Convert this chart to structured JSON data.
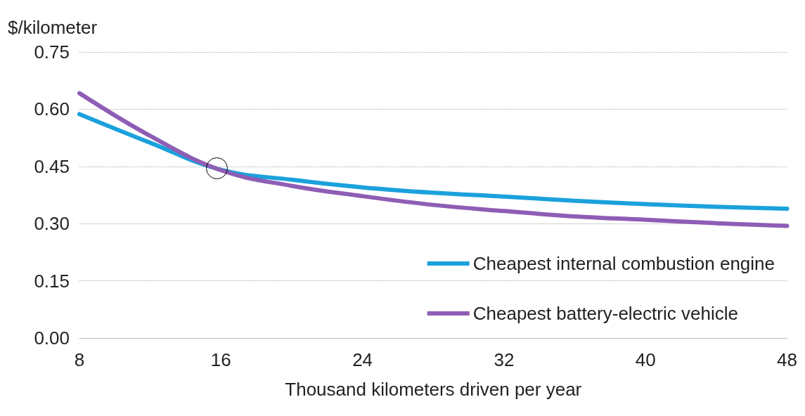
{
  "chart_data": {
    "type": "line",
    "xlabel": "Thousand kilometers driven per year",
    "ylabel": "$/kilometer",
    "x": [
      8,
      12,
      16,
      20,
      24,
      28,
      32,
      36,
      40,
      44,
      48
    ],
    "series": [
      {
        "name": "Cheapest internal combustion engine",
        "color": "#1ba1dc",
        "values": [
          0.587,
          0.512,
          0.441,
          0.415,
          0.395,
          0.381,
          0.371,
          0.36,
          0.351,
          0.344,
          0.339
        ]
      },
      {
        "name": "Cheapest battery-electric vehicle",
        "color": "#8e5db5",
        "values": [
          0.642,
          0.53,
          0.44,
          0.399,
          0.372,
          0.349,
          0.333,
          0.319,
          0.31,
          0.301,
          0.294
        ]
      }
    ],
    "xlim": [
      8,
      48
    ],
    "xticks": [
      8,
      16,
      24,
      32,
      40,
      48
    ],
    "ylim": [
      0,
      0.75
    ],
    "yticks": [
      {
        "value": 0,
        "label": "0.00"
      },
      {
        "value": 0.15,
        "label": "0.15"
      },
      {
        "value": 0.3,
        "label": "0.30"
      },
      {
        "value": 0.45,
        "label": "0.45"
      },
      {
        "value": 0.6,
        "label": "0.60"
      },
      {
        "value": 0.75,
        "label": "0.75"
      }
    ],
    "grid": "y",
    "legend": "bottom right",
    "marker": "none",
    "line_style": "solid"
  }
}
